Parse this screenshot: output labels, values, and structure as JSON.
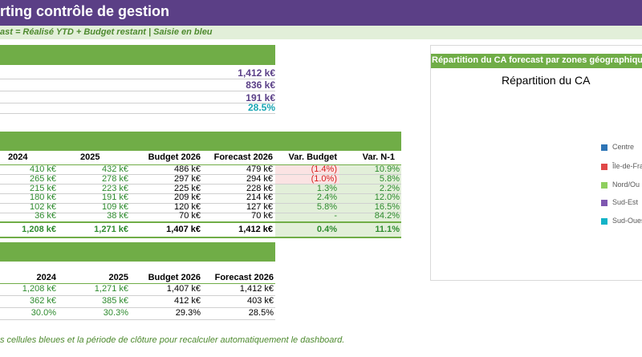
{
  "header": {
    "title": "rting contrôle de gestion",
    "subtitle": "ast = Réalisé YTD + Budget restant  |  Saisie en bleu"
  },
  "kpis": [
    {
      "value": "1,412 k€",
      "color": "#5a3f87"
    },
    {
      "value": "836 k€",
      "color": "#5a3f87"
    },
    {
      "value": "191 k€",
      "color": "#5a3f87"
    },
    {
      "value": "28.5%",
      "color": "#1aa6b3"
    }
  ],
  "zone_table": {
    "headers": [
      "2024",
      "2025",
      "Budget 2026",
      "Forecast 2026",
      "Var. Budget",
      "Var. N-1"
    ],
    "rows": [
      {
        "y2024": "410 k€",
        "y2025": "432 k€",
        "budget": "486 k€",
        "forecast": "479 k€",
        "var_budget": "(1.4%)",
        "var_n1": "10.9%",
        "var_budget_neg": true
      },
      {
        "y2024": "265 k€",
        "y2025": "278 k€",
        "budget": "297 k€",
        "forecast": "294 k€",
        "var_budget": "(1.0%)",
        "var_n1": "5.8%",
        "var_budget_neg": true
      },
      {
        "y2024": "215 k€",
        "y2025": "223 k€",
        "budget": "225 k€",
        "forecast": "228 k€",
        "var_budget": "1.3%",
        "var_n1": "2.2%",
        "var_budget_neg": false
      },
      {
        "y2024": "180 k€",
        "y2025": "191 k€",
        "budget": "209 k€",
        "forecast": "214 k€",
        "var_budget": "2.4%",
        "var_n1": "12.0%",
        "var_budget_neg": false
      },
      {
        "y2024": "102 k€",
        "y2025": "109 k€",
        "budget": "120 k€",
        "forecast": "127 k€",
        "var_budget": "5.8%",
        "var_n1": "16.5%",
        "var_budget_neg": false
      },
      {
        "y2024": "36 k€",
        "y2025": "38 k€",
        "budget": "70 k€",
        "forecast": "70 k€",
        "var_budget": "-",
        "var_n1": "84.2%",
        "var_budget_neg": false
      }
    ],
    "total": {
      "y2024": "1,208 k€",
      "y2025": "1,271 k€",
      "budget": "1,407 k€",
      "forecast": "1,412 k€",
      "var_budget": "0.4%",
      "var_n1": "11.1%"
    }
  },
  "summary_table": {
    "headers": [
      "2024",
      "2025",
      "Budget 2026",
      "Forecast 2026"
    ],
    "rows": [
      [
        "1,208 k€",
        "1,271 k€",
        "1,407 k€",
        "1,412 k€"
      ],
      [
        "362 k€",
        "385 k€",
        "412 k€",
        "403 k€"
      ],
      [
        "30.0%",
        "30.3%",
        "29.3%",
        "28.5%"
      ]
    ]
  },
  "chart": {
    "header": "Répartition du CA forecast par zones géographiques",
    "title": "Répartition du CA",
    "legend": [
      {
        "label": "Centre",
        "color": "#2e75b6"
      },
      {
        "label": "Île-de-Fra",
        "color": "#e04848"
      },
      {
        "label": "Nord/Ou",
        "color": "#8fcf5f"
      },
      {
        "label": "Sud-Est",
        "color": "#7e57b0"
      },
      {
        "label": "Sud-Ouest",
        "color": "#12b3c7"
      }
    ]
  },
  "footer": {
    "note": "s cellules bleues et la période de clôture pour recalculer automatiquement le dashboard."
  }
}
